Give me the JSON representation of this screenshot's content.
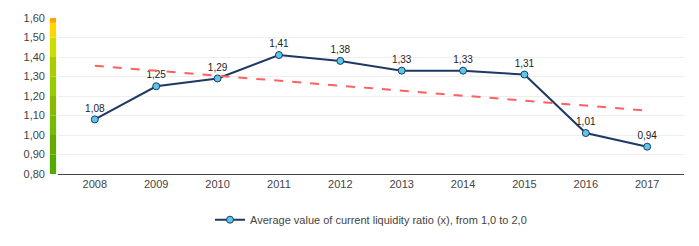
{
  "chart_data": {
    "type": "line",
    "x": [
      2008,
      2009,
      2010,
      2011,
      2012,
      2013,
      2014,
      2015,
      2016,
      2017
    ],
    "series": [
      {
        "name": "Average value of current liquidity ratio (x), from 1,0 to 2,0",
        "color": "#1F3864",
        "marker_color": "#5BC8E8",
        "marker": "circle",
        "values": [
          1.08,
          1.25,
          1.29,
          1.41,
          1.38,
          1.33,
          1.33,
          1.31,
          1.01,
          0.94
        ],
        "value_labels": [
          "1,08",
          "1,25",
          "1,29",
          "1,41",
          "1,38",
          "1,33",
          "1,33",
          "1,31",
          "1,01",
          "0,94"
        ]
      },
      {
        "type": "line",
        "line_style": "dashed",
        "color": "#FF6060",
        "x": [
          2008,
          2017
        ],
        "values": [
          1.355,
          1.125
        ]
      }
    ],
    "data_labels": true,
    "xlim": [
      2007.4,
      2017.6
    ],
    "xticks": [
      2008,
      2009,
      2010,
      2011,
      2012,
      2013,
      2014,
      2015,
      2016,
      2017
    ],
    "ylim": [
      0.8,
      1.6
    ],
    "yticks": [
      {
        "value": 0.8,
        "label": "0,80"
      },
      {
        "value": 0.9,
        "label": "0,90"
      },
      {
        "value": 1.0,
        "label": "1,00"
      },
      {
        "value": 1.1,
        "label": "1,10"
      },
      {
        "value": 1.2,
        "label": "1,20"
      },
      {
        "value": 1.3,
        "label": "1,30"
      },
      {
        "value": 1.4,
        "label": "1,40"
      },
      {
        "value": 1.5,
        "label": "1,50"
      },
      {
        "value": 1.6,
        "label": "1,60"
      }
    ],
    "grid": "y",
    "legend": "bottom",
    "bands": [
      {
        "from": 1.575,
        "to": 1.6,
        "color": "#FFA500"
      },
      {
        "from": 1.5,
        "to": 1.575,
        "color": "#FFD700"
      },
      {
        "from": 1.4,
        "to": 1.5,
        "color": "#CCDD00"
      },
      {
        "from": 1.3,
        "to": 1.4,
        "color": "#AACC00"
      },
      {
        "from": 1.2,
        "to": 1.3,
        "color": "#99CC00"
      },
      {
        "from": 1.1,
        "to": 1.2,
        "color": "#88BB00"
      },
      {
        "from": 1.0,
        "to": 1.1,
        "color": "#77BB00"
      },
      {
        "from": 0.9,
        "to": 1.0,
        "color": "#66AA00"
      },
      {
        "from": 0.8,
        "to": 0.9,
        "color": "#55AA00"
      }
    ]
  }
}
